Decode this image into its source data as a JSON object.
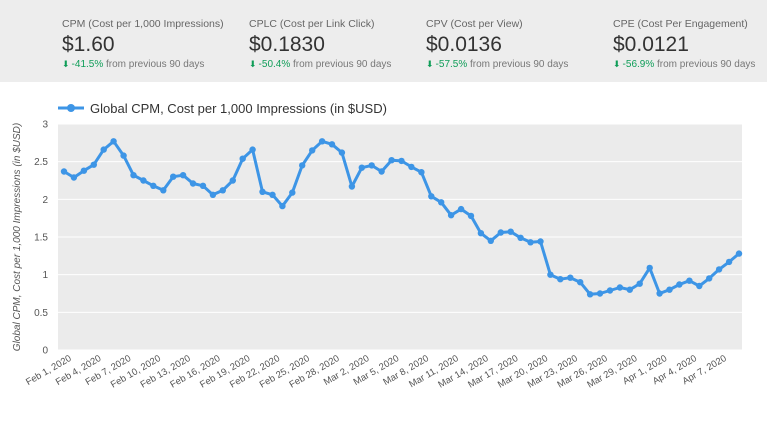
{
  "kpis": [
    {
      "label": "CPM (Cost per 1,000 Impressions)",
      "value": "$1.60",
      "change": "-41.5%",
      "change_suffix": "from previous 90 days",
      "arrow_icon": "arrow-down-icon"
    },
    {
      "label": "CPLC (Cost per Link Click)",
      "value": "$0.1830",
      "change": "-50.4%",
      "change_suffix": "from previous 90 days",
      "arrow_icon": "arrow-down-icon"
    },
    {
      "label": "CPV (Cost per View)",
      "value": "$0.0136",
      "change": "-57.5%",
      "change_suffix": "from previous 90 days",
      "arrow_icon": "arrow-down-icon"
    },
    {
      "label": "CPE (Cost Per Engagement)",
      "value": "$0.0121",
      "change": "-56.9%",
      "change_suffix": "from previous 90 days",
      "arrow_icon": "arrow-down-icon"
    }
  ],
  "colors": {
    "series": "#3d95e6",
    "positive_change": "#0f9d58",
    "kpi_background": "#ededed",
    "plot_background": "#ebebeb"
  },
  "chart_data": {
    "type": "line",
    "ylabel": "Global CPM, Cost per 1,000 Impressions (in $USD)",
    "xlabel": "",
    "ylim": [
      0,
      3
    ],
    "yticks": [
      0,
      0.5,
      1,
      1.5,
      2,
      2.5,
      3
    ],
    "ytick_labels": [
      "0",
      "0.5",
      "1",
      "1.5",
      "2",
      "2.5",
      "3"
    ],
    "xtick_labels": [
      "Feb 1, 2020",
      "Feb 4, 2020",
      "Feb 7, 2020",
      "Feb 10, 2020",
      "Feb 13, 2020",
      "Feb 16, 2020",
      "Feb 19, 2020",
      "Feb 22, 2020",
      "Feb 25, 2020",
      "Feb 28, 2020",
      "Mar 2, 2020",
      "Mar 5, 2020",
      "Mar 8, 2020",
      "Mar 11, 2020",
      "Mar 14, 2020",
      "Mar 17, 2020",
      "Mar 20, 2020",
      "Mar 23, 2020",
      "Mar 26, 2020",
      "Mar 29, 2020",
      "Apr 1, 2020",
      "Apr 4, 2020",
      "Apr 7, 2020"
    ],
    "xtick_step": 3,
    "legend": "top-left",
    "grid": true,
    "series": [
      {
        "name": "Global CPM, Cost per 1,000 Impressions (in $USD)",
        "x": [
          "Feb 1, 2020",
          "Feb 2, 2020",
          "Feb 3, 2020",
          "Feb 4, 2020",
          "Feb 5, 2020",
          "Feb 6, 2020",
          "Feb 7, 2020",
          "Feb 8, 2020",
          "Feb 9, 2020",
          "Feb 10, 2020",
          "Feb 11, 2020",
          "Feb 12, 2020",
          "Feb 13, 2020",
          "Feb 14, 2020",
          "Feb 15, 2020",
          "Feb 16, 2020",
          "Feb 17, 2020",
          "Feb 18, 2020",
          "Feb 19, 2020",
          "Feb 20, 2020",
          "Feb 21, 2020",
          "Feb 22, 2020",
          "Feb 23, 2020",
          "Feb 24, 2020",
          "Feb 25, 2020",
          "Feb 26, 2020",
          "Feb 27, 2020",
          "Feb 28, 2020",
          "Feb 29, 2020",
          "Mar 1, 2020",
          "Mar 2, 2020",
          "Mar 3, 2020",
          "Mar 4, 2020",
          "Mar 5, 2020",
          "Mar 6, 2020",
          "Mar 7, 2020",
          "Mar 8, 2020",
          "Mar 9, 2020",
          "Mar 10, 2020",
          "Mar 11, 2020",
          "Mar 12, 2020",
          "Mar 13, 2020",
          "Mar 14, 2020",
          "Mar 15, 2020",
          "Mar 16, 2020",
          "Mar 17, 2020",
          "Mar 18, 2020",
          "Mar 19, 2020",
          "Mar 20, 2020",
          "Mar 21, 2020",
          "Mar 22, 2020",
          "Mar 23, 2020",
          "Mar 24, 2020",
          "Mar 25, 2020",
          "Mar 26, 2020",
          "Mar 27, 2020",
          "Mar 28, 2020",
          "Mar 29, 2020",
          "Mar 30, 2020",
          "Mar 31, 2020",
          "Apr 1, 2020",
          "Apr 2, 2020",
          "Apr 3, 2020",
          "Apr 4, 2020",
          "Apr 5, 2020",
          "Apr 6, 2020",
          "Apr 7, 2020",
          "Apr 8, 2020",
          "Apr 9, 2020"
        ],
        "values": [
          2.37,
          2.29,
          2.38,
          2.46,
          2.66,
          2.77,
          2.58,
          2.32,
          2.25,
          2.18,
          2.12,
          2.3,
          2.32,
          2.21,
          2.18,
          2.06,
          2.12,
          2.25,
          2.54,
          2.66,
          2.1,
          2.06,
          1.91,
          2.09,
          2.45,
          2.65,
          2.77,
          2.73,
          2.62,
          2.17,
          2.42,
          2.45,
          2.37,
          2.52,
          2.51,
          2.43,
          2.36,
          2.04,
          1.96,
          1.79,
          1.87,
          1.78,
          1.55,
          1.45,
          1.56,
          1.57,
          1.49,
          1.43,
          1.44,
          1.0,
          0.94,
          0.96,
          0.9,
          0.74,
          0.75,
          0.79,
          0.83,
          0.8,
          0.88,
          1.09,
          0.75,
          0.8,
          0.87,
          0.92,
          0.85,
          0.95,
          1.07,
          1.17,
          1.28
        ]
      }
    ]
  }
}
